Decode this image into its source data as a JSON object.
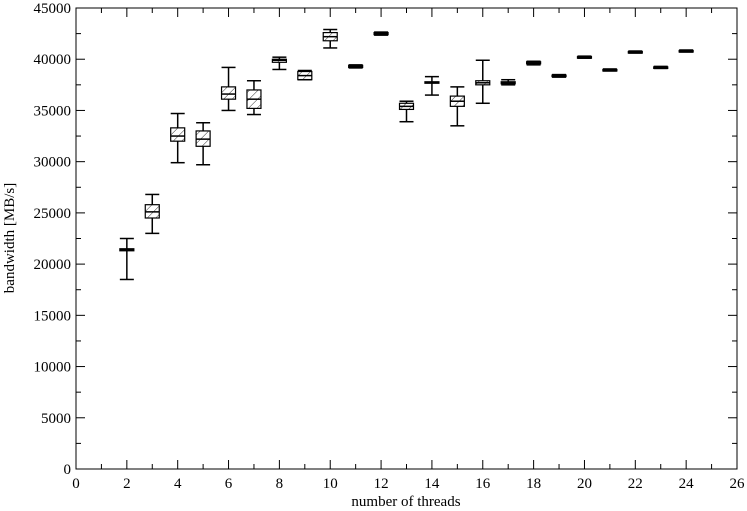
{
  "chart_data": {
    "type": "boxplot",
    "title": "",
    "xlabel": "number of threads",
    "ylabel": "bandwidth [MB/s]",
    "xlim": [
      0,
      26
    ],
    "ylim": [
      0,
      45000
    ],
    "xticks": [
      0,
      2,
      4,
      6,
      8,
      10,
      12,
      14,
      16,
      18,
      20,
      22,
      24,
      26
    ],
    "yticks": [
      0,
      5000,
      10000,
      15000,
      20000,
      25000,
      30000,
      35000,
      40000,
      45000
    ],
    "grid": false,
    "legend": "none",
    "boxes": [
      {
        "x": 2,
        "min": 18500,
        "q1": 21300,
        "median": 21400,
        "q3": 21500,
        "max": 22500
      },
      {
        "x": 3,
        "min": 23000,
        "q1": 24500,
        "median": 25100,
        "q3": 25800,
        "max": 26800
      },
      {
        "x": 4,
        "min": 29900,
        "q1": 32000,
        "median": 32500,
        "q3": 33300,
        "max": 34700
      },
      {
        "x": 5,
        "min": 29700,
        "q1": 31500,
        "median": 32200,
        "q3": 33000,
        "max": 33800
      },
      {
        "x": 6,
        "min": 35000,
        "q1": 36100,
        "median": 36600,
        "q3": 37300,
        "max": 39200
      },
      {
        "x": 7,
        "min": 34600,
        "q1": 35200,
        "median": 36100,
        "q3": 37000,
        "max": 37900
      },
      {
        "x": 8,
        "min": 39000,
        "q1": 39700,
        "median": 39900,
        "q3": 40000,
        "max": 40200
      },
      {
        "x": 9,
        "min": 38000,
        "q1": 38000,
        "median": 38400,
        "q3": 38800,
        "max": 38900
      },
      {
        "x": 10,
        "min": 41100,
        "q1": 41800,
        "median": 42200,
        "q3": 42600,
        "max": 42900
      },
      {
        "x": 11,
        "min": 39150,
        "q1": 39200,
        "median": 39300,
        "q3": 39400,
        "max": 39450
      },
      {
        "x": 12,
        "min": 42350,
        "q1": 42400,
        "median": 42500,
        "q3": 42600,
        "max": 42650
      },
      {
        "x": 13,
        "min": 33900,
        "q1": 35100,
        "median": 35400,
        "q3": 35700,
        "max": 35900
      },
      {
        "x": 14,
        "min": 36500,
        "q1": 37700,
        "median": 37700,
        "q3": 37800,
        "max": 38300
      },
      {
        "x": 15,
        "min": 33500,
        "q1": 35400,
        "median": 35900,
        "q3": 36400,
        "max": 37300
      },
      {
        "x": 16,
        "min": 35700,
        "q1": 37500,
        "median": 37700,
        "q3": 37900,
        "max": 39900
      },
      {
        "x": 17,
        "min": 37500,
        "q1": 37600,
        "median": 37700,
        "q3": 37800,
        "max": 38000
      },
      {
        "x": 18,
        "min": 39450,
        "q1": 39550,
        "median": 39650,
        "q3": 39750,
        "max": 39800
      },
      {
        "x": 19,
        "min": 38250,
        "q1": 38300,
        "median": 38350,
        "q3": 38450,
        "max": 38500
      },
      {
        "x": 20,
        "min": 40100,
        "q1": 40150,
        "median": 40200,
        "q3": 40250,
        "max": 40300
      },
      {
        "x": 21,
        "min": 38850,
        "q1": 38900,
        "median": 38950,
        "q3": 39000,
        "max": 39050
      },
      {
        "x": 22,
        "min": 40600,
        "q1": 40650,
        "median": 40700,
        "q3": 40750,
        "max": 40800
      },
      {
        "x": 23,
        "min": 39100,
        "q1": 39150,
        "median": 39200,
        "q3": 39250,
        "max": 39300
      },
      {
        "x": 24,
        "min": 40700,
        "q1": 40750,
        "median": 40800,
        "q3": 40850,
        "max": 40900
      }
    ]
  }
}
